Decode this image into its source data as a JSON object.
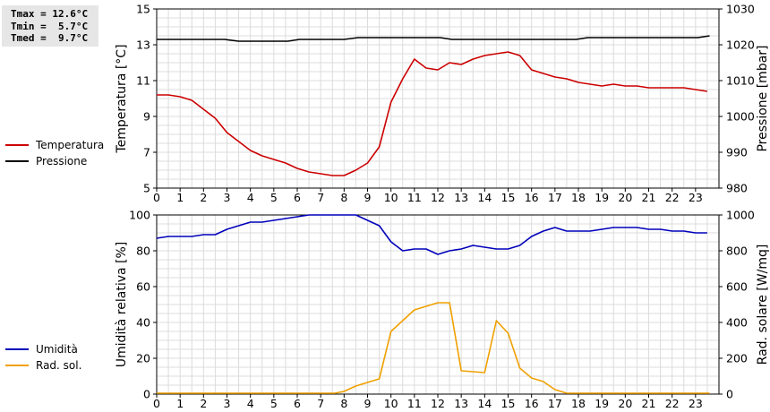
{
  "stats": {
    "tmax": "Tmax = 12.6°C",
    "tmin": "Tmin =  5.7°C",
    "tmed": "Tmed =  9.7°C"
  },
  "chart_data": [
    {
      "type": "line",
      "x_ticks": [
        "0",
        "1",
        "2",
        "3",
        "4",
        "5",
        "6",
        "7",
        "8",
        "9",
        "10",
        "11",
        "12",
        "13",
        "14",
        "15",
        "16",
        "17",
        "18",
        "19",
        "20",
        "21",
        "22",
        "23"
      ],
      "xlim": [
        0,
        24
      ],
      "ylabel_left": "Temperatura [°C]",
      "ylabel_right": "Pressione [mbar]",
      "ylim_left": [
        5,
        15
      ],
      "yticks_left": [
        "5",
        "7",
        "9",
        "11",
        "13",
        "15"
      ],
      "ylim_right": [
        980,
        1030
      ],
      "yticks_right": [
        "980",
        "990",
        "1000",
        "1010",
        "1020",
        "1030"
      ],
      "grid": true,
      "legend_position": "left",
      "series": [
        {
          "name": "Temperatura",
          "axis": "left",
          "color": "#cc0000",
          "x": [
            0,
            0.5,
            1,
            1.5,
            2,
            2.5,
            3,
            3.5,
            4,
            4.5,
            5,
            5.5,
            6,
            6.5,
            7,
            7.5,
            8,
            8.5,
            9,
            9.5,
            10,
            10.5,
            11,
            11.5,
            12,
            12.5,
            13,
            13.5,
            14,
            14.5,
            15,
            15.5,
            16,
            16.5,
            17,
            17.5,
            18,
            18.5,
            19,
            19.5,
            20,
            20.5,
            21,
            21.5,
            22,
            22.5,
            23,
            23.5
          ],
          "values": [
            10.2,
            10.2,
            10.1,
            9.9,
            9.4,
            8.9,
            8.1,
            7.6,
            7.1,
            6.8,
            6.6,
            6.4,
            6.1,
            5.9,
            5.8,
            5.7,
            5.7,
            6.0,
            6.4,
            7.3,
            9.8,
            11.1,
            12.2,
            11.7,
            11.6,
            12.0,
            11.9,
            12.2,
            12.4,
            12.5,
            12.6,
            12.4,
            11.6,
            11.4,
            11.2,
            11.1,
            10.9,
            10.8,
            10.7,
            10.8,
            10.7,
            10.7,
            10.6,
            10.6,
            10.6,
            10.6,
            10.5,
            10.4
          ]
        },
        {
          "name": "Pressione",
          "axis": "right",
          "color": "#000000",
          "x": [
            0,
            2.9,
            3.5,
            5.6,
            6.1,
            8,
            8.6,
            12.1,
            12.6,
            17.9,
            18.4,
            23.1,
            23.6
          ],
          "values": [
            1021.5,
            1021.5,
            1021,
            1021,
            1021.5,
            1021.5,
            1022,
            1022,
            1021.5,
            1021.5,
            1022,
            1022,
            1022.5
          ]
        }
      ]
    },
    {
      "type": "line",
      "x_ticks": [
        "0",
        "1",
        "2",
        "3",
        "4",
        "5",
        "6",
        "7",
        "8",
        "9",
        "10",
        "11",
        "12",
        "13",
        "14",
        "15",
        "16",
        "17",
        "18",
        "19",
        "20",
        "21",
        "22",
        "23"
      ],
      "xlim": [
        0,
        24
      ],
      "ylabel_left": "Umidità relativa [%]",
      "ylabel_right": "Rad. solare [W/mq]",
      "ylim_left": [
        0,
        100
      ],
      "yticks_left": [
        "0",
        "20",
        "40",
        "60",
        "80",
        "100"
      ],
      "ylim_right": [
        0,
        1000
      ],
      "yticks_right": [
        "0",
        "200",
        "400",
        "600",
        "800",
        "1000"
      ],
      "grid": true,
      "legend_position": "left",
      "series": [
        {
          "name": "Umidità",
          "axis": "left",
          "color": "#0000bb",
          "x": [
            0,
            0.5,
            1,
            1.5,
            2,
            2.5,
            3,
            3.5,
            4,
            4.5,
            5,
            5.5,
            6,
            6.5,
            7,
            7.5,
            8,
            8.5,
            9,
            9.5,
            10,
            10.5,
            11,
            11.5,
            12,
            12.5,
            13,
            13.5,
            14,
            14.5,
            15,
            15.5,
            16,
            16.5,
            17,
            17.5,
            18,
            18.5,
            19,
            19.5,
            20,
            20.5,
            21,
            21.5,
            22,
            22.5,
            23,
            23.5
          ],
          "values": [
            87,
            88,
            88,
            88,
            89,
            89,
            92,
            94,
            96,
            96,
            97,
            98,
            99,
            100,
            100,
            100,
            100,
            100,
            97,
            94,
            85,
            80,
            81,
            81,
            78,
            80,
            81,
            83,
            82,
            81,
            81,
            83,
            88,
            91,
            93,
            91,
            91,
            91,
            92,
            93,
            93,
            93,
            92,
            92,
            91,
            91,
            90,
            90
          ]
        },
        {
          "name": "Rad. sol.",
          "axis": "right",
          "color": "#f0a000",
          "x": [
            0,
            7.6,
            8,
            8.5,
            9,
            9.5,
            10,
            11,
            12,
            12.5,
            13,
            13.5,
            14,
            14.5,
            15,
            15.5,
            16,
            16.5,
            17,
            17.5,
            23.6
          ],
          "values": [
            5,
            5,
            15,
            45,
            65,
            85,
            350,
            470,
            510,
            510,
            130,
            125,
            120,
            410,
            340,
            145,
            90,
            70,
            25,
            5,
            5
          ]
        }
      ]
    }
  ]
}
